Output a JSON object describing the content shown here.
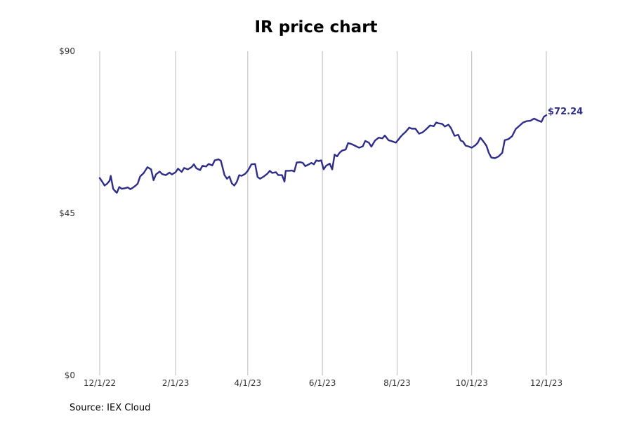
{
  "chart_data": {
    "type": "line",
    "title": "IR price chart",
    "source": "Source: IEX Cloud",
    "xlabel": "",
    "ylabel": "",
    "x_ticks": [
      "12/1/22",
      "2/1/23",
      "4/1/23",
      "6/1/23",
      "8/1/23",
      "10/1/23",
      "12/1/23"
    ],
    "x_tick_dates": [
      "2022-12-01",
      "2023-02-01",
      "2023-04-01",
      "2023-06-01",
      "2023-08-01",
      "2023-10-01",
      "2023-12-01"
    ],
    "y_ticks": [
      {
        "value": 0,
        "label": "$0"
      },
      {
        "value": 45,
        "label": "$45"
      },
      {
        "value": 90,
        "label": "$90"
      }
    ],
    "ylim": [
      0,
      90
    ],
    "xlim": [
      "2022-12-01",
      "2023-12-01"
    ],
    "grid": "vertical",
    "legend": "none",
    "line_color": "#2e2e8a",
    "grid_color": "#bbbbbb",
    "end_label": "$72.24",
    "series": [
      {
        "points": [
          [
            "2022-12-01",
            54.8
          ],
          [
            "2022-12-03",
            53.8
          ],
          [
            "2022-12-05",
            52.7
          ],
          [
            "2022-12-07",
            53.2
          ],
          [
            "2022-12-09",
            54.0
          ],
          [
            "2022-12-10",
            55.4
          ],
          [
            "2022-12-12",
            51.8
          ],
          [
            "2022-12-14",
            51.0
          ],
          [
            "2022-12-15",
            50.7
          ],
          [
            "2022-12-17",
            52.3
          ],
          [
            "2022-12-19",
            51.8
          ],
          [
            "2022-12-22",
            52.0
          ],
          [
            "2022-12-24",
            52.2
          ],
          [
            "2022-12-26",
            51.7
          ],
          [
            "2022-12-28",
            52.1
          ],
          [
            "2022-12-30",
            52.6
          ],
          [
            "2023-01-01",
            53.2
          ],
          [
            "2023-01-03",
            55.2
          ],
          [
            "2023-01-06",
            56.2
          ],
          [
            "2023-01-09",
            57.8
          ],
          [
            "2023-01-12",
            57.2
          ],
          [
            "2023-01-14",
            54.2
          ],
          [
            "2023-01-16",
            55.8
          ],
          [
            "2023-01-19",
            56.6
          ],
          [
            "2023-01-21",
            55.9
          ],
          [
            "2023-01-24",
            55.6
          ],
          [
            "2023-01-27",
            56.3
          ],
          [
            "2023-01-29",
            55.8
          ],
          [
            "2023-02-01",
            56.4
          ],
          [
            "2023-02-03",
            57.4
          ],
          [
            "2023-02-06",
            56.5
          ],
          [
            "2023-02-08",
            57.6
          ],
          [
            "2023-02-11",
            57.2
          ],
          [
            "2023-02-14",
            57.8
          ],
          [
            "2023-02-16",
            58.6
          ],
          [
            "2023-02-18",
            57.5
          ],
          [
            "2023-02-21",
            57.0
          ],
          [
            "2023-02-23",
            58.2
          ],
          [
            "2023-02-26",
            58.0
          ],
          [
            "2023-02-28",
            58.7
          ],
          [
            "2023-03-03",
            58.3
          ],
          [
            "2023-03-05",
            59.7
          ],
          [
            "2023-03-08",
            60.0
          ],
          [
            "2023-03-10",
            59.6
          ],
          [
            "2023-03-13",
            55.6
          ],
          [
            "2023-03-15",
            54.6
          ],
          [
            "2023-03-17",
            55.2
          ],
          [
            "2023-03-19",
            53.3
          ],
          [
            "2023-03-21",
            52.7
          ],
          [
            "2023-03-23",
            53.7
          ],
          [
            "2023-03-25",
            55.6
          ],
          [
            "2023-03-27",
            55.4
          ],
          [
            "2023-03-30",
            56.0
          ],
          [
            "2023-04-01",
            56.8
          ],
          [
            "2023-04-04",
            58.6
          ],
          [
            "2023-04-07",
            58.7
          ],
          [
            "2023-04-09",
            55.1
          ],
          [
            "2023-04-11",
            54.6
          ],
          [
            "2023-04-14",
            55.2
          ],
          [
            "2023-04-17",
            56.0
          ],
          [
            "2023-04-19",
            56.8
          ],
          [
            "2023-04-21",
            56.2
          ],
          [
            "2023-04-24",
            56.4
          ],
          [
            "2023-04-26",
            55.6
          ],
          [
            "2023-04-29",
            55.6
          ],
          [
            "2023-05-01",
            53.8
          ],
          [
            "2023-05-02",
            56.8
          ],
          [
            "2023-05-05",
            56.8
          ],
          [
            "2023-05-07",
            56.9
          ],
          [
            "2023-05-09",
            56.6
          ],
          [
            "2023-05-11",
            59.1
          ],
          [
            "2023-05-14",
            59.2
          ],
          [
            "2023-05-16",
            59.0
          ],
          [
            "2023-05-18",
            58.1
          ],
          [
            "2023-05-21",
            58.6
          ],
          [
            "2023-05-23",
            59.0
          ],
          [
            "2023-05-25",
            58.6
          ],
          [
            "2023-05-27",
            59.7
          ],
          [
            "2023-05-29",
            59.5
          ],
          [
            "2023-05-31",
            59.7
          ],
          [
            "2023-06-02",
            57.2
          ],
          [
            "2023-06-04",
            58.2
          ],
          [
            "2023-06-07",
            58.8
          ],
          [
            "2023-06-09",
            57.2
          ],
          [
            "2023-06-11",
            61.3
          ],
          [
            "2023-06-13",
            60.8
          ],
          [
            "2023-06-15",
            61.8
          ],
          [
            "2023-06-17",
            62.4
          ],
          [
            "2023-06-20",
            62.7
          ],
          [
            "2023-06-22",
            64.5
          ],
          [
            "2023-06-25",
            64.2
          ],
          [
            "2023-06-28",
            63.7
          ],
          [
            "2023-07-01",
            63.2
          ],
          [
            "2023-07-04",
            63.6
          ],
          [
            "2023-07-06",
            65.1
          ],
          [
            "2023-07-09",
            64.6
          ],
          [
            "2023-07-11",
            63.5
          ],
          [
            "2023-07-14",
            65.2
          ],
          [
            "2023-07-17",
            66.0
          ],
          [
            "2023-07-20",
            65.8
          ],
          [
            "2023-07-22",
            66.6
          ],
          [
            "2023-07-25",
            65.3
          ],
          [
            "2023-07-28",
            65.0
          ],
          [
            "2023-07-31",
            64.6
          ],
          [
            "2023-08-02",
            65.4
          ],
          [
            "2023-08-04",
            66.3
          ],
          [
            "2023-08-06",
            67.0
          ],
          [
            "2023-08-08",
            67.6
          ],
          [
            "2023-08-11",
            68.8
          ],
          [
            "2023-08-13",
            68.5
          ],
          [
            "2023-08-16",
            68.5
          ],
          [
            "2023-08-19",
            67.1
          ],
          [
            "2023-08-22",
            67.5
          ],
          [
            "2023-08-25",
            68.4
          ],
          [
            "2023-08-28",
            69.4
          ],
          [
            "2023-08-31",
            69.2
          ],
          [
            "2023-09-02",
            70.2
          ],
          [
            "2023-09-04",
            70.0
          ],
          [
            "2023-09-07",
            69.8
          ],
          [
            "2023-09-09",
            69.1
          ],
          [
            "2023-09-12",
            69.6
          ],
          [
            "2023-09-14",
            68.7
          ],
          [
            "2023-09-17",
            66.5
          ],
          [
            "2023-09-20",
            66.8
          ],
          [
            "2023-09-22",
            65.2
          ],
          [
            "2023-09-24",
            64.9
          ],
          [
            "2023-09-26",
            63.8
          ],
          [
            "2023-09-29",
            63.5
          ],
          [
            "2023-10-01",
            63.2
          ],
          [
            "2023-10-04",
            63.9
          ],
          [
            "2023-10-06",
            64.6
          ],
          [
            "2023-10-08",
            66.0
          ],
          [
            "2023-10-10",
            65.2
          ],
          [
            "2023-10-13",
            63.8
          ],
          [
            "2023-10-15",
            61.8
          ],
          [
            "2023-10-17",
            60.5
          ],
          [
            "2023-10-20",
            60.3
          ],
          [
            "2023-10-23",
            60.8
          ],
          [
            "2023-10-26",
            61.8
          ],
          [
            "2023-10-28",
            65.3
          ],
          [
            "2023-10-31",
            65.6
          ],
          [
            "2023-11-03",
            66.4
          ],
          [
            "2023-11-06",
            68.4
          ],
          [
            "2023-11-09",
            69.3
          ],
          [
            "2023-11-12",
            70.2
          ],
          [
            "2023-11-15",
            70.6
          ],
          [
            "2023-11-18",
            70.7
          ],
          [
            "2023-11-21",
            71.3
          ],
          [
            "2023-11-24",
            70.8
          ],
          [
            "2023-11-27",
            70.4
          ],
          [
            "2023-11-29",
            71.8
          ],
          [
            "2023-12-01",
            72.24
          ]
        ]
      }
    ]
  }
}
